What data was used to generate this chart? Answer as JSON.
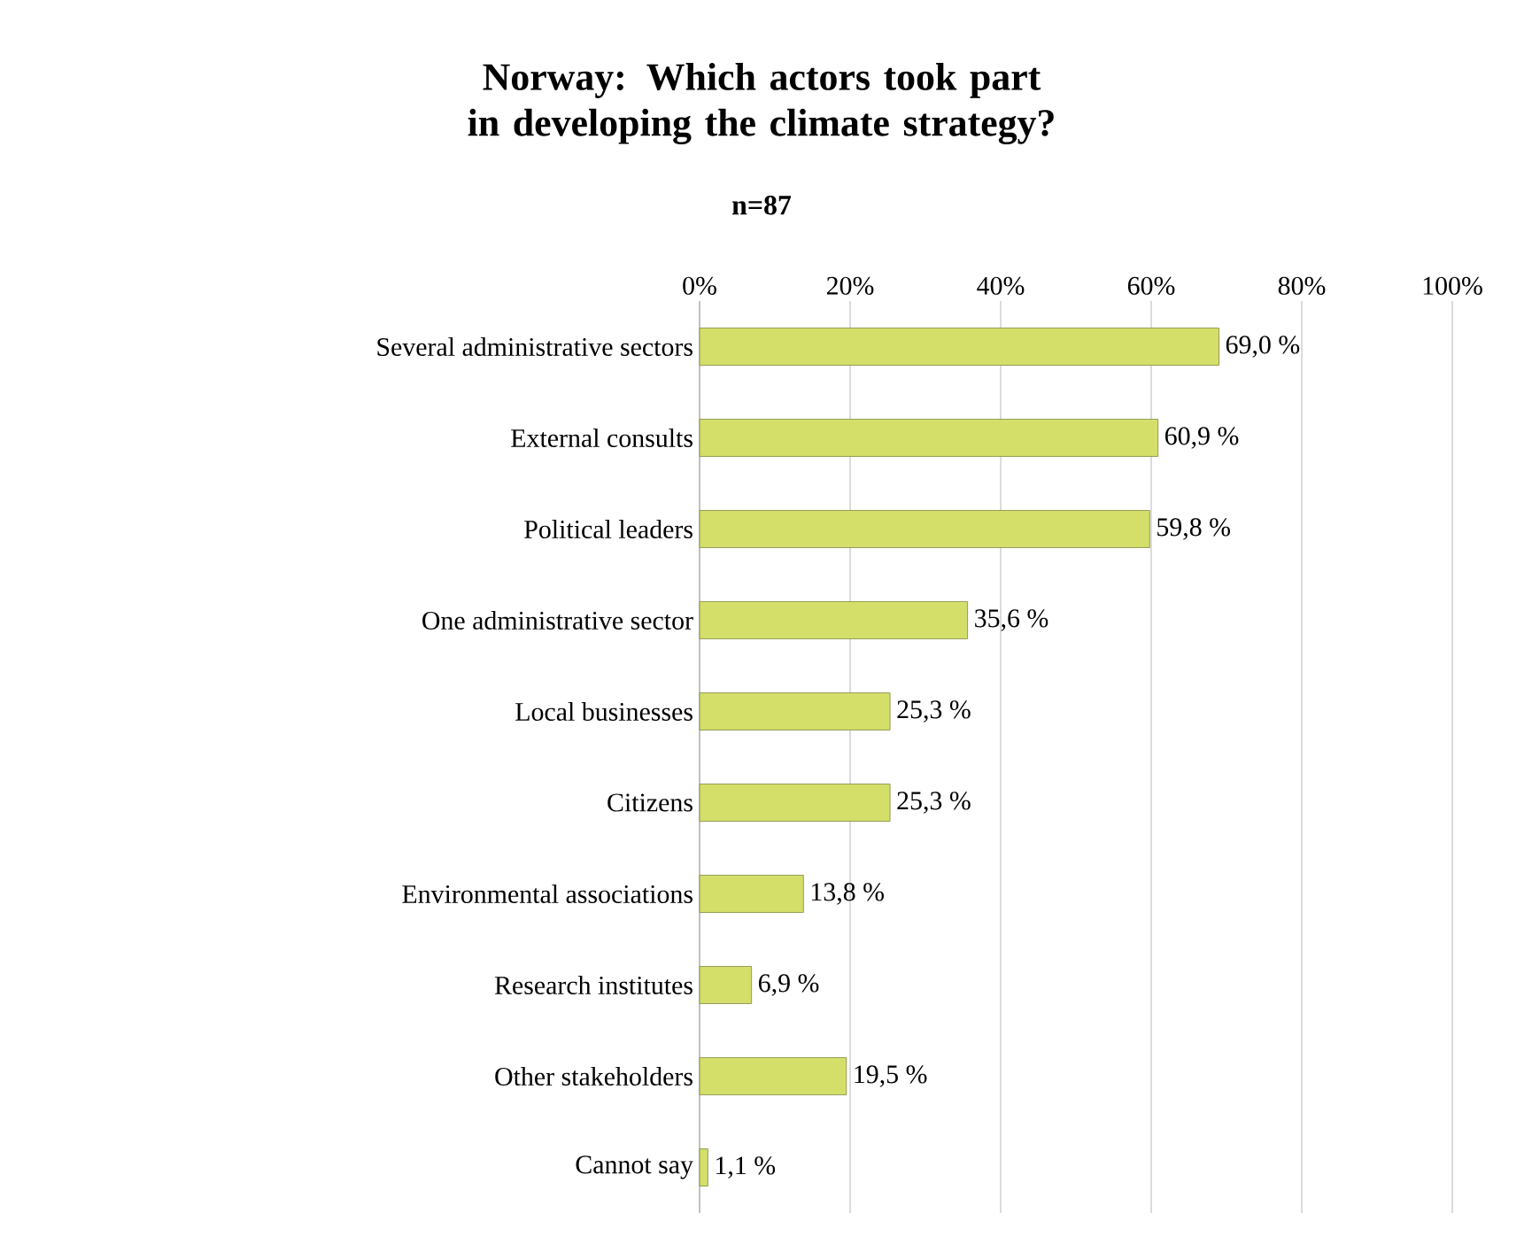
{
  "chart_data": {
    "type": "bar",
    "orientation": "horizontal",
    "title": "Norway: Which actors took part in developing the climate strategy?",
    "subtitle": "n=87",
    "categories": [
      "Several administrative sectors",
      "External consults",
      "Political leaders",
      "One administrative sector",
      "Local businesses",
      "Citizens",
      "Environmental associations",
      "Research institutes",
      "Other stakeholders",
      "Cannot say"
    ],
    "values": [
      69.0,
      60.9,
      59.8,
      35.6,
      25.3,
      25.3,
      13.8,
      6.9,
      19.5,
      1.1
    ],
    "value_labels": [
      "69,0 %",
      "60,9 %",
      "59,8 %",
      "35,6 %",
      "25,3 %",
      "25,3 %",
      "13,8 %",
      "6,9 %",
      "19,5 %",
      "1,1 %"
    ],
    "color": "#d4df6a",
    "xlim": [
      0,
      100
    ],
    "xticks": [
      {
        "value": 0,
        "label": "0%"
      },
      {
        "value": 20,
        "label": "20%"
      },
      {
        "value": 40,
        "label": "40%"
      },
      {
        "value": 60,
        "label": "60%"
      },
      {
        "value": 80,
        "label": "80%"
      },
      {
        "value": 100,
        "label": "100%"
      }
    ],
    "grid": "x"
  }
}
